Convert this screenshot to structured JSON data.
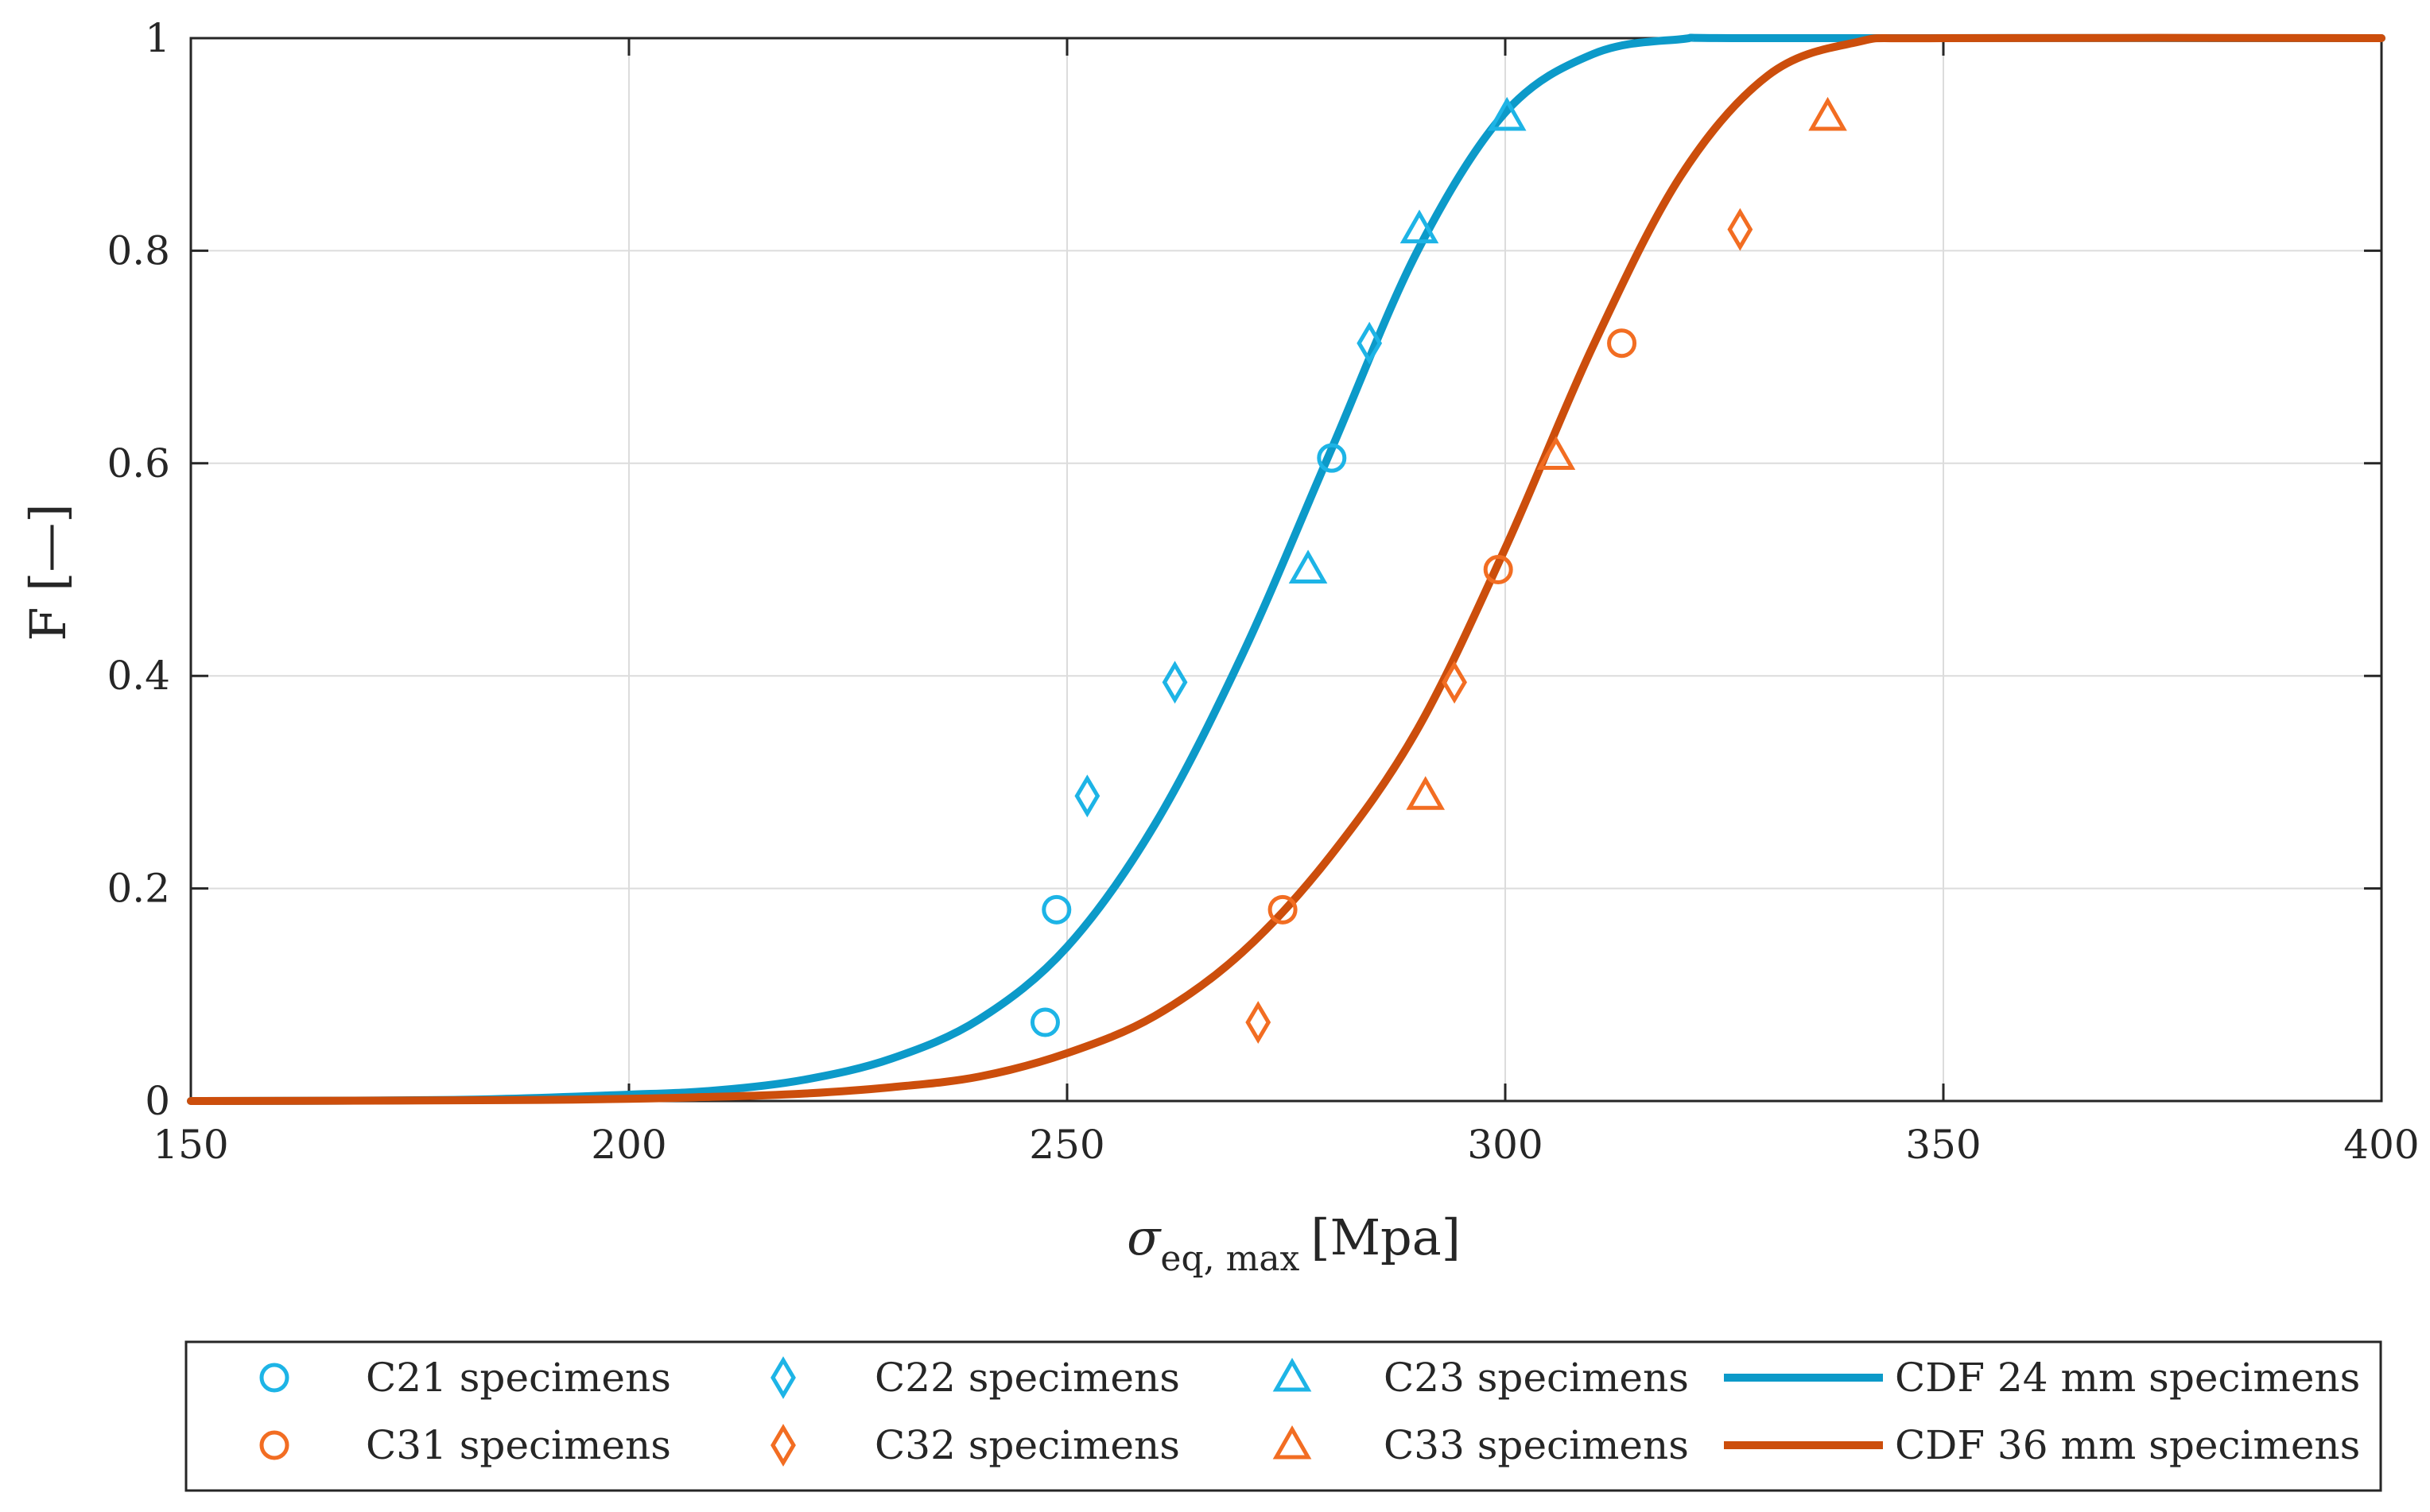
{
  "chart_data": {
    "type": "scatter",
    "title": "",
    "xlabel": {
      "symbol": "σ",
      "subscript": "eq, max",
      "unit": "[Mpa]"
    },
    "ylabel": "F [—]",
    "xlim": [
      150,
      400
    ],
    "ylim": [
      0,
      1
    ],
    "xticks": [
      "150",
      "200",
      "250",
      "300",
      "350",
      "400"
    ],
    "yticks": [
      "0",
      "0.2",
      "0.4",
      "0.6",
      "0.8",
      "1"
    ],
    "grid": true,
    "legend_position": "bottom",
    "series": [
      {
        "name": "C21 specimens",
        "marker": "circle",
        "color": "#1db4e6",
        "points": [
          [
            247.5,
            0.074
          ],
          [
            248.8,
            0.18
          ],
          [
            280.2,
            0.605
          ]
        ]
      },
      {
        "name": "C22 specimens",
        "marker": "diamond",
        "color": "#1db4e6",
        "points": [
          [
            252.3,
            0.287
          ],
          [
            262.3,
            0.394
          ],
          [
            284.5,
            0.713
          ]
        ]
      },
      {
        "name": "C23 specimens",
        "marker": "triangle",
        "color": "#1db4e6",
        "points": [
          [
            277.5,
            0.5
          ],
          [
            290.2,
            0.82
          ],
          [
            300.2,
            0.926
          ]
        ]
      },
      {
        "name": "C31 specimens",
        "marker": "circle",
        "color": "#f26d22",
        "points": [
          [
            274.6,
            0.18
          ],
          [
            299.2,
            0.5
          ],
          [
            313.3,
            0.713
          ]
        ]
      },
      {
        "name": "C32 specimens",
        "marker": "diamond",
        "color": "#f26d22",
        "points": [
          [
            271.8,
            0.074
          ],
          [
            294.2,
            0.394
          ],
          [
            326.8,
            0.82
          ]
        ]
      },
      {
        "name": "C33 specimens",
        "marker": "triangle",
        "color": "#f26d22",
        "points": [
          [
            290.9,
            0.287
          ],
          [
            305.8,
            0.607
          ],
          [
            336.8,
            0.926
          ]
        ]
      }
    ],
    "curves": [
      {
        "name": "CDF 24 mm specimens",
        "color": "#0c9ac9",
        "points": [
          [
            150,
            0
          ],
          [
            180,
            0.001
          ],
          [
            200,
            0.006
          ],
          [
            210,
            0.01
          ],
          [
            220,
            0.02
          ],
          [
            230,
            0.04
          ],
          [
            240,
            0.077
          ],
          [
            250,
            0.145
          ],
          [
            260,
            0.26
          ],
          [
            270,
            0.42
          ],
          [
            280,
            0.61
          ],
          [
            290,
            0.8
          ],
          [
            300,
            0.93
          ],
          [
            310,
            0.985
          ],
          [
            320,
            0.999
          ],
          [
            330,
            1
          ],
          [
            400,
            1
          ]
        ]
      },
      {
        "name": "CDF 36 mm specimens",
        "color": "#cc4e0c",
        "points": [
          [
            150,
            0
          ],
          [
            190,
            0.001
          ],
          [
            210,
            0.004
          ],
          [
            220,
            0.007
          ],
          [
            230,
            0.013
          ],
          [
            240,
            0.023
          ],
          [
            250,
            0.045
          ],
          [
            260,
            0.08
          ],
          [
            270,
            0.14
          ],
          [
            280,
            0.23
          ],
          [
            290,
            0.35
          ],
          [
            300,
            0.52
          ],
          [
            310,
            0.71
          ],
          [
            320,
            0.87
          ],
          [
            330,
            0.965
          ],
          [
            340,
            0.996
          ],
          [
            350,
            1
          ],
          [
            400,
            1
          ]
        ]
      }
    ]
  }
}
